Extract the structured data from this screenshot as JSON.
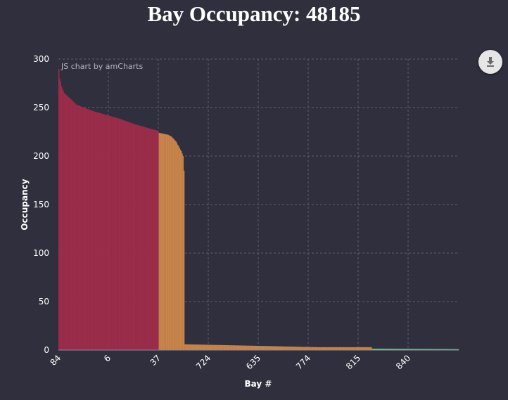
{
  "title": "Bay Occupancy: 48185",
  "export_icon": "download-icon",
  "colors": {
    "background": "#2f2f3d",
    "red": "#9b2d4a",
    "orange": "#c8844a",
    "green": "#72c489",
    "grid": "#5c5c6e",
    "text": "#ffffff"
  },
  "chart_data": {
    "type": "bar",
    "credit": "JS chart by amCharts",
    "xlabel": "Bay #",
    "ylabel": "Occupancy",
    "ylim": [
      0,
      300
    ],
    "yticks": [
      0,
      50,
      100,
      150,
      200,
      250,
      300
    ],
    "xtick_labels": [
      "84",
      "6",
      "37",
      "724",
      "635",
      "774",
      "815",
      "840"
    ],
    "grid": true,
    "sorted": "descending",
    "series": [
      {
        "color": "#9b2d4a",
        "bar_count": 113,
        "profile": [
          [
            0,
            290
          ],
          [
            1,
            280
          ],
          [
            3,
            272
          ],
          [
            6,
            265
          ],
          [
            12,
            260
          ],
          [
            20,
            253
          ],
          [
            28,
            250
          ],
          [
            40,
            246
          ],
          [
            55,
            242
          ],
          [
            70,
            238
          ],
          [
            85,
            233
          ],
          [
            100,
            229
          ],
          [
            112,
            226
          ]
        ]
      },
      {
        "color": "#c8844a",
        "bar_count": 29,
        "profile": [
          [
            0,
            224
          ],
          [
            10,
            222
          ],
          [
            14,
            220
          ],
          [
            19,
            215
          ],
          [
            22,
            210
          ],
          [
            25,
            205
          ],
          [
            27,
            200
          ],
          [
            28,
            185
          ],
          [
            29,
            150
          ]
        ]
      },
      {
        "color": "#c8844a",
        "bar_count": 211,
        "profile": [
          [
            0,
            6
          ],
          [
            50,
            5
          ],
          [
            100,
            4
          ],
          [
            150,
            3
          ],
          [
            210,
            3
          ]
        ]
      },
      {
        "color": "#72c489",
        "bar_count": 98,
        "profile": [
          [
            0,
            1.5
          ],
          [
            97,
            1
          ]
        ]
      }
    ]
  }
}
